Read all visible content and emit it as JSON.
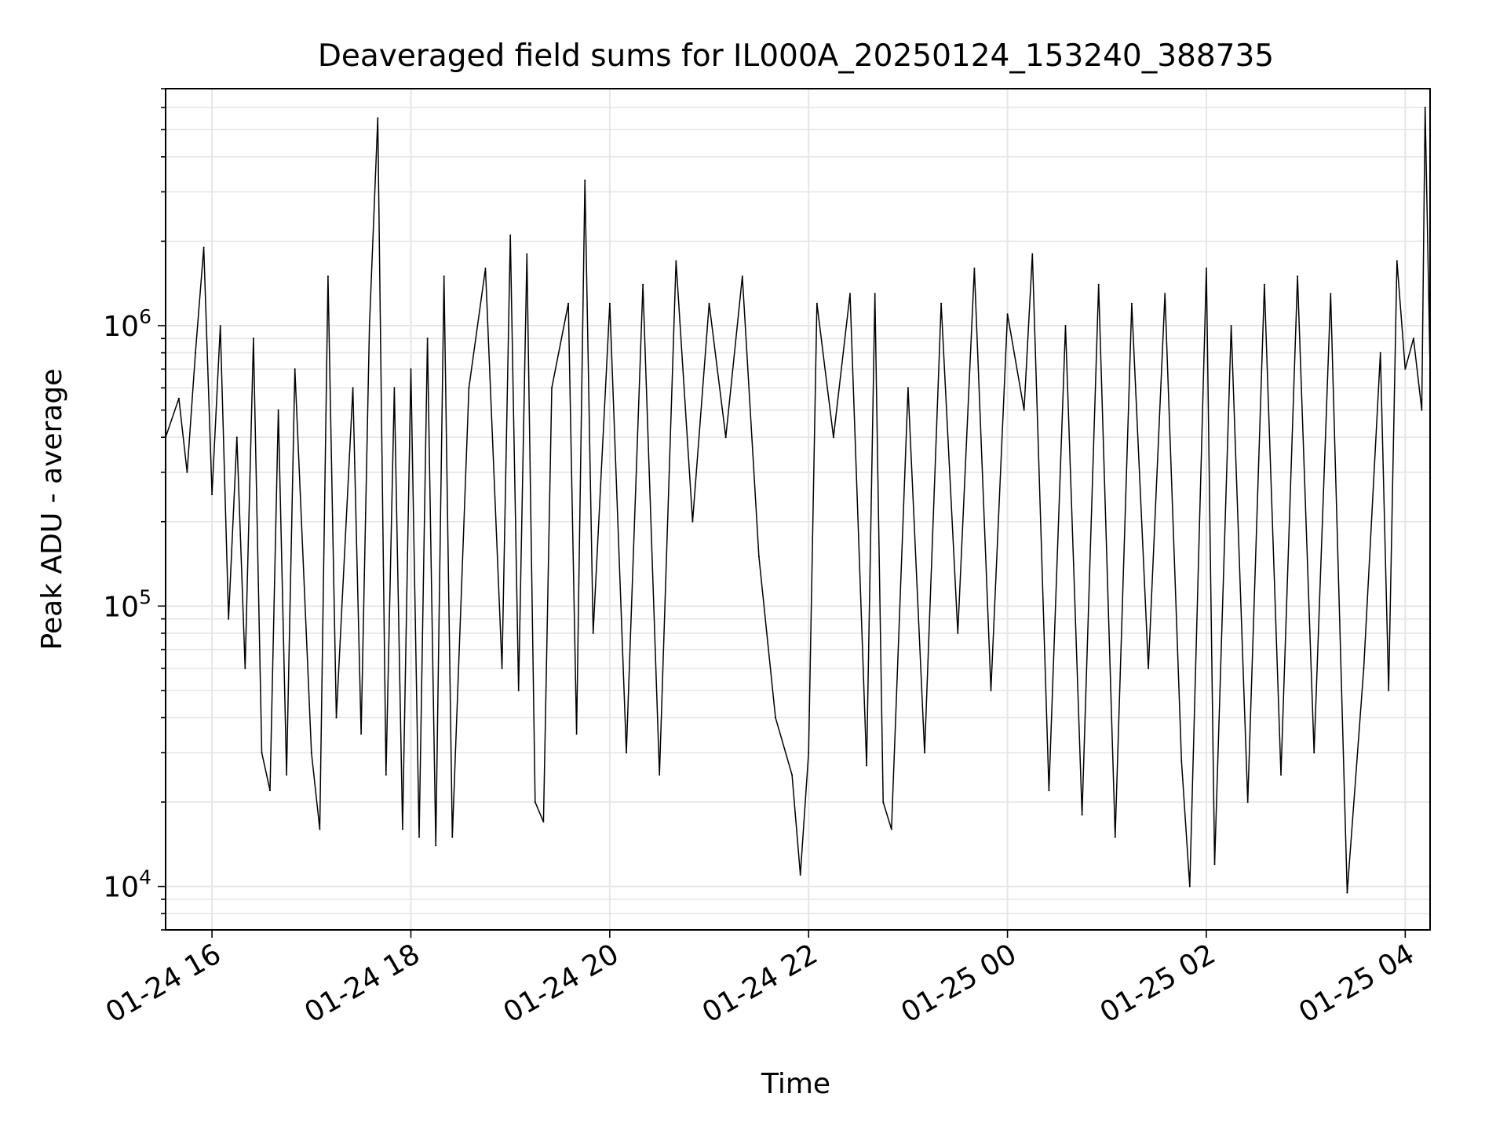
{
  "chart_data": {
    "type": "line",
    "title": "Deaveraged field sums for IL000A_20250124_153240_388735",
    "xlabel": "Time",
    "ylabel": "Peak ADU - average",
    "y_scale": "log",
    "ylim": [
      7000,
      7000000
    ],
    "xlim": [
      "2025-01-24 15:32",
      "2025-01-25 04:15"
    ],
    "grid": true,
    "legend": "none",
    "line_color": "#000000",
    "x_ticks": [
      {
        "label": "01-24 16",
        "value": "2025-01-24 16:00"
      },
      {
        "label": "01-24 18",
        "value": "2025-01-24 18:00"
      },
      {
        "label": "01-24 20",
        "value": "2025-01-24 20:00"
      },
      {
        "label": "01-24 22",
        "value": "2025-01-24 22:00"
      },
      {
        "label": "01-25 00",
        "value": "2025-01-25 00:00"
      },
      {
        "label": "01-25 02",
        "value": "2025-01-25 02:00"
      },
      {
        "label": "01-25 04",
        "value": "2025-01-25 04:00"
      }
    ],
    "y_ticks": [
      {
        "base": "10",
        "exp": "4",
        "value": 10000
      },
      {
        "base": "10",
        "exp": "5",
        "value": 100000
      },
      {
        "base": "10",
        "exp": "6",
        "value": 1000000
      }
    ],
    "series": [
      {
        "values_note_free": true,
        "points": [
          [
            "2025-01-24 15:32",
            400000
          ],
          [
            "2025-01-24 15:40",
            550000
          ],
          [
            "2025-01-24 15:45",
            300000
          ],
          [
            "2025-01-24 15:50",
            800000
          ],
          [
            "2025-01-24 15:55",
            1900000
          ],
          [
            "2025-01-24 16:00",
            250000
          ],
          [
            "2025-01-24 16:05",
            1000000
          ],
          [
            "2025-01-24 16:10",
            90000
          ],
          [
            "2025-01-24 16:15",
            400000
          ],
          [
            "2025-01-24 16:20",
            60000
          ],
          [
            "2025-01-24 16:25",
            900000
          ],
          [
            "2025-01-24 16:30",
            30000
          ],
          [
            "2025-01-24 16:35",
            22000
          ],
          [
            "2025-01-24 16:40",
            500000
          ],
          [
            "2025-01-24 16:45",
            25000
          ],
          [
            "2025-01-24 16:50",
            700000
          ],
          [
            "2025-01-24 17:00",
            30000
          ],
          [
            "2025-01-24 17:05",
            16000
          ],
          [
            "2025-01-24 17:10",
            1500000
          ],
          [
            "2025-01-24 17:15",
            40000
          ],
          [
            "2025-01-24 17:25",
            600000
          ],
          [
            "2025-01-24 17:30",
            35000
          ],
          [
            "2025-01-24 17:35",
            1000000
          ],
          [
            "2025-01-24 17:40",
            5500000
          ],
          [
            "2025-01-24 17:45",
            25000
          ],
          [
            "2025-01-24 17:50",
            600000
          ],
          [
            "2025-01-24 17:55",
            16000
          ],
          [
            "2025-01-24 18:00",
            700000
          ],
          [
            "2025-01-24 18:05",
            15000
          ],
          [
            "2025-01-24 18:10",
            900000
          ],
          [
            "2025-01-24 18:15",
            14000
          ],
          [
            "2025-01-24 18:20",
            1500000
          ],
          [
            "2025-01-24 18:25",
            15000
          ],
          [
            "2025-01-24 18:35",
            600000
          ],
          [
            "2025-01-24 18:45",
            1600000
          ],
          [
            "2025-01-24 18:55",
            60000
          ],
          [
            "2025-01-24 19:00",
            2100000
          ],
          [
            "2025-01-24 19:05",
            50000
          ],
          [
            "2025-01-24 19:10",
            1800000
          ],
          [
            "2025-01-24 19:15",
            20000
          ],
          [
            "2025-01-24 19:20",
            17000
          ],
          [
            "2025-01-24 19:25",
            600000
          ],
          [
            "2025-01-24 19:35",
            1200000
          ],
          [
            "2025-01-24 19:40",
            35000
          ],
          [
            "2025-01-24 19:45",
            3300000
          ],
          [
            "2025-01-24 19:50",
            80000
          ],
          [
            "2025-01-24 20:00",
            1200000
          ],
          [
            "2025-01-24 20:10",
            30000
          ],
          [
            "2025-01-24 20:20",
            1400000
          ],
          [
            "2025-01-24 20:30",
            25000
          ],
          [
            "2025-01-24 20:40",
            1700000
          ],
          [
            "2025-01-24 20:50",
            200000
          ],
          [
            "2025-01-24 21:00",
            1200000
          ],
          [
            "2025-01-24 21:10",
            400000
          ],
          [
            "2025-01-24 21:20",
            1500000
          ],
          [
            "2025-01-24 21:30",
            150000
          ],
          [
            "2025-01-24 21:40",
            40000
          ],
          [
            "2025-01-24 21:50",
            25000
          ],
          [
            "2025-01-24 21:55",
            11000
          ],
          [
            "2025-01-24 22:00",
            30000
          ],
          [
            "2025-01-24 22:05",
            1200000
          ],
          [
            "2025-01-24 22:15",
            400000
          ],
          [
            "2025-01-24 22:25",
            1300000
          ],
          [
            "2025-01-24 22:35",
            27000
          ],
          [
            "2025-01-24 22:40",
            1300000
          ],
          [
            "2025-01-24 22:45",
            20000
          ],
          [
            "2025-01-24 22:50",
            16000
          ],
          [
            "2025-01-24 23:00",
            600000
          ],
          [
            "2025-01-24 23:10",
            30000
          ],
          [
            "2025-01-24 23:20",
            1200000
          ],
          [
            "2025-01-24 23:30",
            80000
          ],
          [
            "2025-01-24 23:40",
            1600000
          ],
          [
            "2025-01-24 23:50",
            50000
          ],
          [
            "2025-01-25 00:00",
            1100000
          ],
          [
            "2025-01-25 00:10",
            500000
          ],
          [
            "2025-01-25 00:15",
            1800000
          ],
          [
            "2025-01-25 00:25",
            22000
          ],
          [
            "2025-01-25 00:35",
            1000000
          ],
          [
            "2025-01-25 00:45",
            18000
          ],
          [
            "2025-01-25 00:55",
            1400000
          ],
          [
            "2025-01-25 01:05",
            15000
          ],
          [
            "2025-01-25 01:15",
            1200000
          ],
          [
            "2025-01-25 01:25",
            60000
          ],
          [
            "2025-01-25 01:35",
            1300000
          ],
          [
            "2025-01-25 01:45",
            28000
          ],
          [
            "2025-01-25 01:50",
            10000
          ],
          [
            "2025-01-25 02:00",
            1600000
          ],
          [
            "2025-01-25 02:05",
            12000
          ],
          [
            "2025-01-25 02:15",
            1000000
          ],
          [
            "2025-01-25 02:25",
            20000
          ],
          [
            "2025-01-25 02:35",
            1400000
          ],
          [
            "2025-01-25 02:45",
            25000
          ],
          [
            "2025-01-25 02:55",
            1500000
          ],
          [
            "2025-01-25 03:05",
            30000
          ],
          [
            "2025-01-25 03:15",
            1300000
          ],
          [
            "2025-01-25 03:25",
            9500
          ],
          [
            "2025-01-25 03:35",
            60000
          ],
          [
            "2025-01-25 03:45",
            800000
          ],
          [
            "2025-01-25 03:50",
            50000
          ],
          [
            "2025-01-25 03:55",
            1700000
          ],
          [
            "2025-01-25 04:00",
            700000
          ],
          [
            "2025-01-25 04:05",
            900000
          ],
          [
            "2025-01-25 04:10",
            500000
          ],
          [
            "2025-01-25 04:12",
            6000000
          ],
          [
            "2025-01-25 04:15",
            700000
          ]
        ]
      }
    ]
  }
}
